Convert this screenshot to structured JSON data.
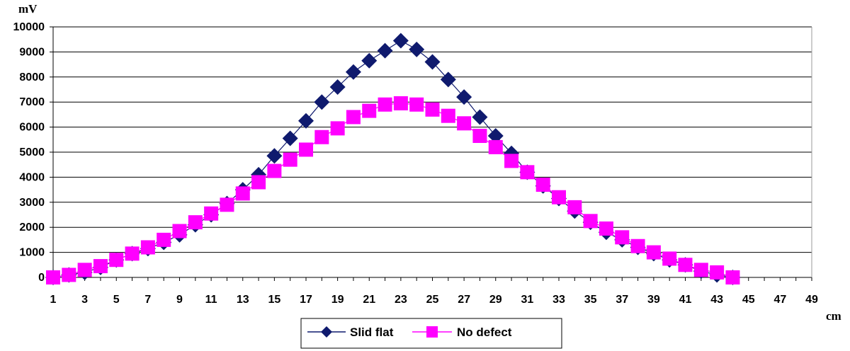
{
  "chart_data": {
    "type": "line",
    "ylabel": "mV",
    "xlabel": "cm",
    "ylim": [
      0,
      10000
    ],
    "xlim": [
      1,
      49
    ],
    "yticks": [
      0,
      1000,
      2000,
      3000,
      4000,
      5000,
      6000,
      7000,
      8000,
      9000,
      10000
    ],
    "xticks": [
      1,
      3,
      5,
      7,
      9,
      11,
      13,
      15,
      17,
      19,
      21,
      23,
      25,
      27,
      29,
      31,
      33,
      35,
      37,
      39,
      41,
      43,
      45,
      47,
      49
    ],
    "grid": "horizontal",
    "legend_position": "bottom",
    "x": [
      1,
      2,
      3,
      4,
      5,
      6,
      7,
      8,
      9,
      10,
      11,
      12,
      13,
      14,
      15,
      16,
      17,
      18,
      19,
      20,
      21,
      22,
      23,
      24,
      25,
      26,
      27,
      28,
      29,
      30,
      31,
      32,
      33,
      34,
      35,
      36,
      37,
      38,
      39,
      40,
      41,
      42,
      43,
      44
    ],
    "series": [
      {
        "name": "Slid flat",
        "color": "#0f1a6e",
        "marker": "diamond",
        "values": [
          0,
          100,
          200,
          400,
          700,
          950,
          1150,
          1400,
          1700,
          2100,
          2500,
          2950,
          3500,
          4100,
          4850,
          5550,
          6250,
          7000,
          7600,
          8200,
          8650,
          9050,
          9450,
          9100,
          8600,
          7900,
          7200,
          6400,
          5650,
          4950,
          4200,
          3650,
          3150,
          2650,
          2200,
          1800,
          1500,
          1200,
          950,
          700,
          500,
          250,
          100,
          0
        ]
      },
      {
        "name": "No defect",
        "color": "#ff00ff",
        "marker": "square",
        "values": [
          0,
          100,
          300,
          450,
          700,
          950,
          1200,
          1500,
          1850,
          2200,
          2550,
          2900,
          3350,
          3800,
          4250,
          4700,
          5100,
          5600,
          5950,
          6400,
          6650,
          6900,
          6950,
          6900,
          6700,
          6450,
          6150,
          5650,
          5200,
          4650,
          4200,
          3700,
          3200,
          2800,
          2250,
          1950,
          1600,
          1250,
          1000,
          750,
          500,
          300,
          200,
          0
        ]
      }
    ]
  }
}
